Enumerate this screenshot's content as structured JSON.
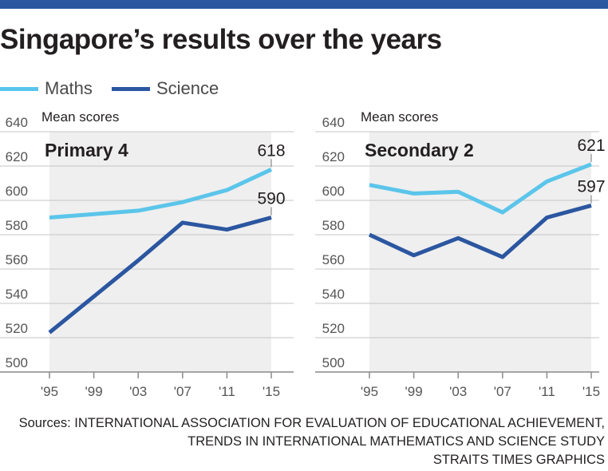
{
  "title": "Singapore’s results over the years",
  "legend": [
    {
      "label": "Maths",
      "color": "#5bc5ea"
    },
    {
      "label": "Science",
      "color": "#2b56a0"
    }
  ],
  "colors": {
    "topbar": "#2b56a0",
    "plot_bg": "#efefef",
    "grid": "#c6c6c6",
    "axis": "#8a8a8a",
    "text": "#231f20",
    "tick_text": "#555555"
  },
  "sources": [
    "Sources: INTERNATIONAL ASSOCIATION FOR EVALUATION OF EDUCATIONAL ACHIEVEMENT,",
    "TRENDS IN INTERNATIONAL MATHEMATICS AND SCIENCE STUDY",
    "STRAITS TIMES GRAPHICS"
  ],
  "chart_data": [
    {
      "type": "line",
      "title": "Primary 4",
      "ylabel": "Mean scores",
      "categories": [
        "'95",
        "'99",
        "'03",
        "'07",
        "'11",
        "'15"
      ],
      "yticks": [
        500,
        520,
        540,
        560,
        580,
        600,
        620,
        640
      ],
      "ylim": [
        500,
        640
      ],
      "grid": true,
      "series": [
        {
          "name": "Maths",
          "values": [
            590,
            592,
            594,
            599,
            606,
            618
          ]
        },
        {
          "name": "Science",
          "values": [
            523,
            544,
            565,
            587,
            583,
            590
          ]
        }
      ],
      "labels": [
        {
          "series": "Maths",
          "index": 5,
          "text": "618"
        },
        {
          "series": "Science",
          "index": 5,
          "text": "590"
        }
      ]
    },
    {
      "type": "line",
      "title": "Secondary 2",
      "ylabel": "Mean scores",
      "categories": [
        "'95",
        "'99",
        "'03",
        "'07",
        "'11",
        "'15"
      ],
      "yticks": [
        500,
        520,
        540,
        560,
        580,
        600,
        620,
        640
      ],
      "ylim": [
        500,
        640
      ],
      "grid": true,
      "series": [
        {
          "name": "Maths",
          "values": [
            609,
            604,
            605,
            593,
            611,
            621
          ]
        },
        {
          "name": "Science",
          "values": [
            580,
            568,
            578,
            567,
            590,
            597
          ]
        }
      ],
      "labels": [
        {
          "series": "Maths",
          "index": 5,
          "text": "621"
        },
        {
          "series": "Science",
          "index": 5,
          "text": "597"
        }
      ]
    }
  ]
}
